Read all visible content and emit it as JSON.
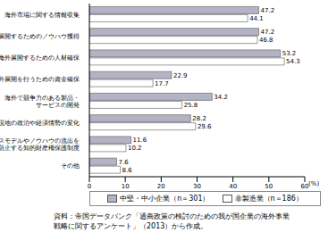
{
  "chart_data": {
    "type": "bar",
    "orientation": "horizontal",
    "categories": [
      "海外市場に関する情報収集",
      "海外展開するためのノウハウ獲得",
      "海外展開するための人材確保",
      "海外展開を行うための資金確保",
      "海外で競争力のある製品・\nサービスの開発",
      "現地の政治や経済情勢の変化",
      "ビジネスモデルやノウハウの流出を\n防止する知的財産権保護制度",
      "その他"
    ],
    "series": [
      {
        "name": "中堅・中小企業（n＝301）",
        "color": "#b3b3c6",
        "values": [
          47.2,
          47.2,
          53.2,
          22.9,
          34.2,
          28.2,
          11.6,
          7.6
        ]
      },
      {
        "name": "非製造業（n＝186）",
        "color": "#ffffff",
        "values": [
          44.1,
          46.8,
          54.3,
          17.7,
          25.8,
          29.6,
          10.2,
          8.6
        ]
      }
    ],
    "x_label": "(%)",
    "xlim": [
      0,
      60
    ],
    "xticks": [
      0,
      10,
      20,
      30,
      40,
      50,
      60
    ],
    "grid": false,
    "legend": "bottom",
    "data_labels": true,
    "source": "資料：帝国データバンク「通商政策の検討のための我が国企業の海外事業\n戦略に関するアンケート」（2013）から作成。"
  }
}
